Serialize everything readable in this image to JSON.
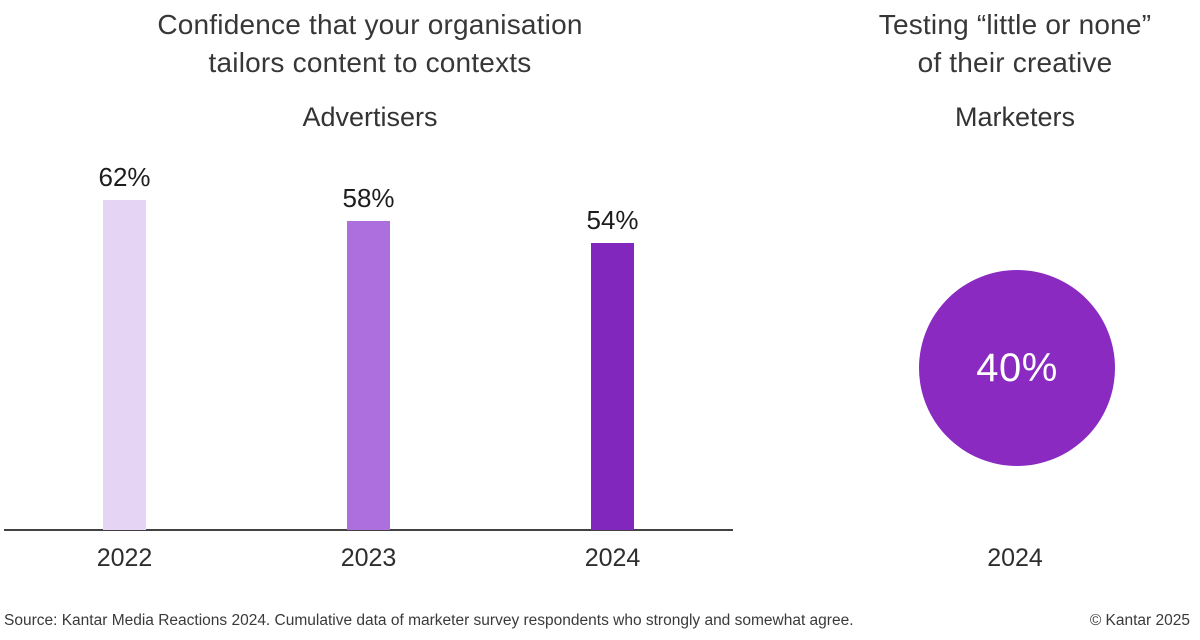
{
  "left_panel": {
    "title_line1": "Confidence that your organisation",
    "title_line2": "tailors content to contexts",
    "subtitle": "Advertisers"
  },
  "right_panel": {
    "title_line1": "Testing “little or none”",
    "title_line2": "of their creative",
    "subtitle": "Marketers"
  },
  "footer": {
    "source_text": "Source: Kantar Media Reactions 2024. Cumulative data of marketer survey respondents who strongly and somewhat agree.",
    "copyright_text": "© Kantar 2025"
  },
  "colors": {
    "bar_2022": "#e5d4f4",
    "bar_2023": "#ad6fde",
    "bar_2024": "#8227be",
    "circle": "#8a2ac1",
    "axis": "#424242",
    "title_text": "#373737"
  },
  "chart_data": [
    {
      "type": "bar",
      "title": "Confidence that your organisation tailors content to contexts",
      "subtitle": "Advertisers",
      "categories": [
        "2022",
        "2023",
        "2024"
      ],
      "values": [
        62,
        58,
        54
      ],
      "value_labels": [
        "62%",
        "58%",
        "54%"
      ],
      "bar_colors": [
        "#e5d4f4",
        "#ad6fde",
        "#8227be"
      ],
      "grid": false,
      "legend": false,
      "value_labels_position": "above-bars"
    },
    {
      "type": "pie",
      "title": "Testing “little or none” of their creative",
      "subtitle": "Marketers",
      "categories": [
        "2024"
      ],
      "values": [
        40
      ],
      "value_label": "40%",
      "color": "#8a2ac1",
      "shape": "filled-circle",
      "label_color": "#ffffff"
    }
  ]
}
